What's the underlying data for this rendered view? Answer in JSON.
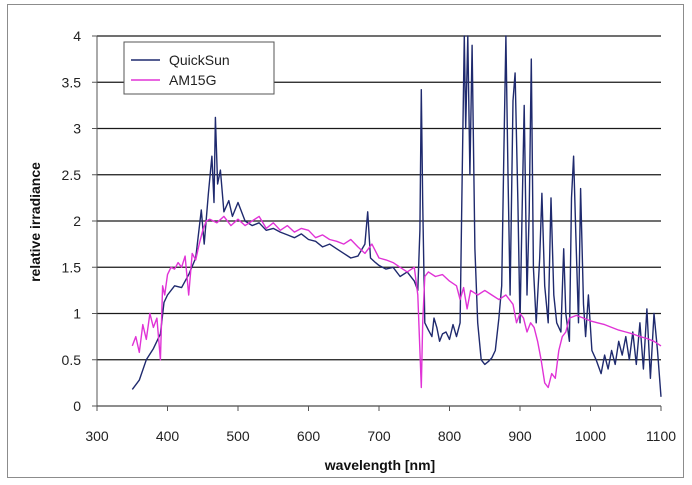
{
  "chart_data": {
    "type": "line",
    "title": "",
    "xlabel": "wavelength [nm]",
    "ylabel": "relative irradiance",
    "xlim": [
      300,
      1100
    ],
    "ylim": [
      0,
      4
    ],
    "x_ticks": [
      "300",
      "400",
      "500",
      "600",
      "700",
      "800",
      "900",
      "1000",
      "1100"
    ],
    "y_ticks": [
      "0",
      "0.5",
      "1",
      "1.5",
      "2",
      "2.5",
      "3",
      "3.5",
      "4"
    ],
    "grid": "horizontal",
    "legend_position": "top-left",
    "series": [
      {
        "name": "QuickSun",
        "color": "#1f2a6e",
        "points": [
          [
            350,
            0.18
          ],
          [
            360,
            0.28
          ],
          [
            370,
            0.5
          ],
          [
            380,
            0.62
          ],
          [
            390,
            0.78
          ],
          [
            395,
            1.12
          ],
          [
            400,
            1.2
          ],
          [
            410,
            1.3
          ],
          [
            420,
            1.28
          ],
          [
            430,
            1.42
          ],
          [
            440,
            1.6
          ],
          [
            448,
            2.12
          ],
          [
            452,
            1.75
          ],
          [
            458,
            2.3
          ],
          [
            463,
            2.7
          ],
          [
            466,
            2.2
          ],
          [
            468,
            3.12
          ],
          [
            471,
            2.4
          ],
          [
            475,
            2.55
          ],
          [
            480,
            2.1
          ],
          [
            487,
            2.22
          ],
          [
            492,
            2.05
          ],
          [
            500,
            2.2
          ],
          [
            510,
            2.0
          ],
          [
            520,
            1.95
          ],
          [
            530,
            1.98
          ],
          [
            540,
            1.9
          ],
          [
            550,
            1.92
          ],
          [
            560,
            1.88
          ],
          [
            570,
            1.85
          ],
          [
            580,
            1.82
          ],
          [
            590,
            1.86
          ],
          [
            600,
            1.8
          ],
          [
            610,
            1.78
          ],
          [
            620,
            1.72
          ],
          [
            630,
            1.75
          ],
          [
            640,
            1.7
          ],
          [
            650,
            1.65
          ],
          [
            660,
            1.6
          ],
          [
            670,
            1.62
          ],
          [
            680,
            1.75
          ],
          [
            684,
            2.1
          ],
          [
            688,
            1.6
          ],
          [
            695,
            1.55
          ],
          [
            700,
            1.52
          ],
          [
            710,
            1.48
          ],
          [
            720,
            1.5
          ],
          [
            730,
            1.4
          ],
          [
            740,
            1.45
          ],
          [
            750,
            1.35
          ],
          [
            755,
            1.25
          ],
          [
            758,
            1.9
          ],
          [
            760,
            3.42
          ],
          [
            762,
            2.2
          ],
          [
            765,
            0.9
          ],
          [
            770,
            0.82
          ],
          [
            775,
            0.75
          ],
          [
            778,
            0.95
          ],
          [
            782,
            0.85
          ],
          [
            786,
            0.7
          ],
          [
            790,
            0.78
          ],
          [
            795,
            0.8
          ],
          [
            800,
            0.72
          ],
          [
            805,
            0.88
          ],
          [
            810,
            0.75
          ],
          [
            815,
            0.9
          ],
          [
            818,
            2.5
          ],
          [
            821,
            4.0
          ],
          [
            823,
            3.0
          ],
          [
            826,
            4.0
          ],
          [
            829,
            2.5
          ],
          [
            832,
            3.9
          ],
          [
            836,
            1.7
          ],
          [
            840,
            0.9
          ],
          [
            845,
            0.5
          ],
          [
            850,
            0.45
          ],
          [
            855,
            0.48
          ],
          [
            860,
            0.52
          ],
          [
            865,
            0.6
          ],
          [
            870,
            0.95
          ],
          [
            874,
            1.3
          ],
          [
            877,
            2.7
          ],
          [
            880,
            4.0
          ],
          [
            883,
            2.5
          ],
          [
            886,
            1.2
          ],
          [
            890,
            3.3
          ],
          [
            893,
            3.6
          ],
          [
            897,
            2.2
          ],
          [
            900,
            0.9
          ],
          [
            903,
            2.1
          ],
          [
            906,
            3.25
          ],
          [
            910,
            1.2
          ],
          [
            913,
            2.1
          ],
          [
            916,
            3.75
          ],
          [
            919,
            1.5
          ],
          [
            923,
            0.9
          ],
          [
            928,
            1.6
          ],
          [
            931,
            2.3
          ],
          [
            935,
            1.3
          ],
          [
            940,
            0.9
          ],
          [
            944,
            2.25
          ],
          [
            948,
            1.2
          ],
          [
            952,
            0.9
          ],
          [
            958,
            0.8
          ],
          [
            962,
            1.7
          ],
          [
            965,
            1.0
          ],
          [
            970,
            0.7
          ],
          [
            973,
            2.25
          ],
          [
            976,
            2.7
          ],
          [
            979,
            1.9
          ],
          [
            983,
            0.9
          ],
          [
            986,
            2.35
          ],
          [
            990,
            1.1
          ],
          [
            993,
            0.75
          ],
          [
            997,
            1.2
          ],
          [
            1002,
            0.6
          ],
          [
            1008,
            0.5
          ],
          [
            1015,
            0.35
          ],
          [
            1020,
            0.55
          ],
          [
            1025,
            0.4
          ],
          [
            1030,
            0.6
          ],
          [
            1035,
            0.45
          ],
          [
            1040,
            0.7
          ],
          [
            1045,
            0.55
          ],
          [
            1050,
            0.75
          ],
          [
            1055,
            0.5
          ],
          [
            1060,
            0.8
          ],
          [
            1065,
            0.45
          ],
          [
            1070,
            0.9
          ],
          [
            1075,
            0.4
          ],
          [
            1080,
            1.05
          ],
          [
            1085,
            0.3
          ],
          [
            1090,
            1.0
          ],
          [
            1095,
            0.6
          ],
          [
            1100,
            0.1
          ]
        ]
      },
      {
        "name": "AM15G",
        "color": "#e033d6",
        "points": [
          [
            350,
            0.65
          ],
          [
            355,
            0.75
          ],
          [
            360,
            0.58
          ],
          [
            365,
            0.88
          ],
          [
            370,
            0.72
          ],
          [
            375,
            1.0
          ],
          [
            380,
            0.85
          ],
          [
            385,
            0.95
          ],
          [
            390,
            0.5
          ],
          [
            393,
            1.3
          ],
          [
            396,
            1.2
          ],
          [
            400,
            1.42
          ],
          [
            405,
            1.5
          ],
          [
            410,
            1.48
          ],
          [
            415,
            1.55
          ],
          [
            420,
            1.5
          ],
          [
            425,
            1.62
          ],
          [
            430,
            1.2
          ],
          [
            435,
            1.65
          ],
          [
            440,
            1.58
          ],
          [
            445,
            1.75
          ],
          [
            450,
            1.9
          ],
          [
            455,
            2.0
          ],
          [
            460,
            2.02
          ],
          [
            470,
            1.98
          ],
          [
            480,
            2.05
          ],
          [
            490,
            1.95
          ],
          [
            500,
            2.02
          ],
          [
            510,
            1.95
          ],
          [
            520,
            2.0
          ],
          [
            530,
            2.05
          ],
          [
            540,
            1.92
          ],
          [
            550,
            1.98
          ],
          [
            560,
            1.9
          ],
          [
            570,
            1.95
          ],
          [
            580,
            1.88
          ],
          [
            590,
            1.92
          ],
          [
            600,
            1.9
          ],
          [
            610,
            1.82
          ],
          [
            620,
            1.85
          ],
          [
            630,
            1.8
          ],
          [
            640,
            1.78
          ],
          [
            650,
            1.75
          ],
          [
            660,
            1.8
          ],
          [
            670,
            1.72
          ],
          [
            680,
            1.65
          ],
          [
            690,
            1.75
          ],
          [
            700,
            1.6
          ],
          [
            710,
            1.58
          ],
          [
            720,
            1.55
          ],
          [
            730,
            1.5
          ],
          [
            740,
            1.45
          ],
          [
            750,
            1.5
          ],
          [
            755,
            1.2
          ],
          [
            758,
            0.6
          ],
          [
            760,
            0.2
          ],
          [
            762,
            0.9
          ],
          [
            765,
            1.4
          ],
          [
            770,
            1.45
          ],
          [
            780,
            1.4
          ],
          [
            790,
            1.42
          ],
          [
            800,
            1.35
          ],
          [
            810,
            1.3
          ],
          [
            815,
            1.15
          ],
          [
            820,
            1.28
          ],
          [
            825,
            1.05
          ],
          [
            830,
            1.25
          ],
          [
            840,
            1.2
          ],
          [
            850,
            1.25
          ],
          [
            860,
            1.2
          ],
          [
            870,
            1.15
          ],
          [
            880,
            1.2
          ],
          [
            890,
            1.1
          ],
          [
            895,
            0.9
          ],
          [
            900,
            1.0
          ],
          [
            905,
            0.95
          ],
          [
            910,
            0.8
          ],
          [
            915,
            0.9
          ],
          [
            920,
            0.85
          ],
          [
            925,
            0.7
          ],
          [
            930,
            0.5
          ],
          [
            935,
            0.25
          ],
          [
            940,
            0.2
          ],
          [
            945,
            0.35
          ],
          [
            950,
            0.3
          ],
          [
            955,
            0.6
          ],
          [
            960,
            0.75
          ],
          [
            965,
            0.8
          ],
          [
            970,
            0.95
          ],
          [
            980,
            0.98
          ],
          [
            990,
            0.95
          ],
          [
            1000,
            0.92
          ],
          [
            1010,
            0.9
          ],
          [
            1020,
            0.88
          ],
          [
            1030,
            0.85
          ],
          [
            1040,
            0.82
          ],
          [
            1050,
            0.8
          ],
          [
            1060,
            0.78
          ],
          [
            1070,
            0.75
          ],
          [
            1080,
            0.73
          ],
          [
            1090,
            0.7
          ],
          [
            1100,
            0.65
          ]
        ]
      }
    ]
  }
}
